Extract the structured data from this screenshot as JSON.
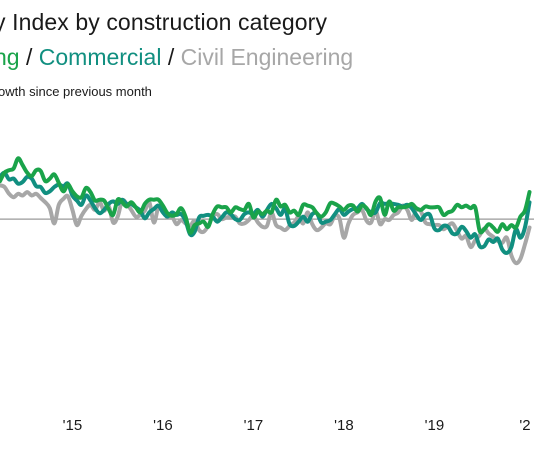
{
  "chart_data": {
    "type": "line",
    "title": "y Index by construction category",
    "subtitle": "owth since previous month",
    "legend_text": [
      {
        "text": "ng",
        "series": 0
      },
      {
        "text": " / ",
        "series": null
      },
      {
        "text": "Commercial",
        "series": 1
      },
      {
        "text": " / ",
        "series": null
      },
      {
        "text": "Civil Engineering",
        "series": 2
      }
    ],
    "x_tick_labels": [
      "'15",
      "'16",
      "'17",
      "'18",
      "'19",
      "'2"
    ],
    "x_tick_positions": [
      2015,
      2016,
      2017,
      2018,
      2019,
      2020
    ],
    "x_range": [
      2014.2,
      2020.1
    ],
    "y_range": [
      -2.2,
      1.15
    ],
    "baseline": 0,
    "series": [
      {
        "color": "#1aa34a",
        "x": [
          2014.2,
          2014.25,
          2014.3,
          2014.35,
          2014.4,
          2014.45,
          2014.5,
          2014.55,
          2014.6,
          2014.65,
          2014.7,
          2014.75,
          2014.8,
          2014.85,
          2014.9,
          2014.95,
          2015.0,
          2015.05,
          2015.1,
          2015.15,
          2015.2,
          2015.25,
          2015.3,
          2015.35,
          2015.4,
          2015.45,
          2015.5,
          2015.55,
          2015.6,
          2015.65,
          2015.7,
          2015.75,
          2015.8,
          2015.85,
          2015.9,
          2015.95,
          2016.0,
          2016.05,
          2016.1,
          2016.15,
          2016.2,
          2016.25,
          2016.3,
          2016.35,
          2016.4,
          2016.45,
          2016.5,
          2016.55,
          2016.6,
          2016.65,
          2016.7,
          2016.75,
          2016.8,
          2016.85,
          2016.9,
          2016.95,
          2017.0,
          2017.05,
          2017.1,
          2017.15,
          2017.2,
          2017.25,
          2017.3,
          2017.35,
          2017.4,
          2017.45,
          2017.5,
          2017.55,
          2017.6,
          2017.65,
          2017.7,
          2017.75,
          2017.8,
          2017.85,
          2017.9,
          2017.95,
          2018.0,
          2018.05,
          2018.1,
          2018.15,
          2018.2,
          2018.25,
          2018.3,
          2018.35,
          2018.4,
          2018.45,
          2018.5,
          2018.55,
          2018.6,
          2018.65,
          2018.7,
          2018.75,
          2018.8,
          2018.85,
          2018.9,
          2018.95,
          2019.0,
          2019.05,
          2019.1,
          2019.15,
          2019.2,
          2019.25,
          2019.3,
          2019.35,
          2019.4,
          2019.45,
          2019.5,
          2019.55,
          2019.6,
          2019.65,
          2019.7,
          2019.75,
          2019.8,
          2019.85,
          2019.9,
          2019.95,
          2020.0,
          2020.05
        ],
        "y": [
          0.45,
          0.55,
          0.58,
          0.6,
          0.72,
          0.64,
          0.55,
          0.51,
          0.58,
          0.57,
          0.45,
          0.48,
          0.53,
          0.43,
          0.33,
          0.41,
          0.33,
          0.27,
          0.26,
          0.37,
          0.32,
          0.22,
          0.23,
          0.22,
          0.12,
          0.05,
          0.23,
          0.2,
          0.15,
          0.2,
          0.14,
          0.08,
          0.18,
          0.23,
          0.23,
          0.23,
          0.16,
          0.07,
          0.04,
          0.06,
          0.13,
          0.03,
          -0.16,
          -0.07,
          -0.05,
          -0.03,
          -0.09,
          0.06,
          0.15,
          0.14,
          0.14,
          0.08,
          0.14,
          0.12,
          0.11,
          0.18,
          0.02,
          0.09,
          0.06,
          0.1,
          0.08,
          0.23,
          0.15,
          0.17,
          0.08,
          0.1,
          0.05,
          0.17,
          0.16,
          0.14,
          0.07,
          0.03,
          0.08,
          0.19,
          0.18,
          0.15,
          0.11,
          0.16,
          0.16,
          0.09,
          0.16,
          0.13,
          0.05,
          0.21,
          0.25,
          0.05,
          0.21,
          0.1,
          0.14,
          0.14,
          0.15,
          0.18,
          0.13,
          0.11,
          0.15,
          0.14,
          0.14,
          0.14,
          0.05,
          0.08,
          0.1,
          0.17,
          0.14,
          0.16,
          0.13,
          0.14,
          -0.14,
          -0.12,
          -0.06,
          -0.1,
          -0.15,
          -0.06,
          -0.12,
          -0.07,
          -0.1,
          0.03,
          0.1,
          0.32
        ]
      },
      {
        "color": "#118f80",
        "x": [
          2014.2,
          2014.25,
          2014.3,
          2014.35,
          2014.4,
          2014.45,
          2014.5,
          2014.55,
          2014.6,
          2014.65,
          2014.7,
          2014.75,
          2014.8,
          2014.85,
          2014.9,
          2014.95,
          2015.0,
          2015.05,
          2015.1,
          2015.15,
          2015.2,
          2015.25,
          2015.3,
          2015.35,
          2015.4,
          2015.45,
          2015.5,
          2015.55,
          2015.6,
          2015.65,
          2015.7,
          2015.75,
          2015.8,
          2015.85,
          2015.9,
          2015.95,
          2016.0,
          2016.05,
          2016.1,
          2016.15,
          2016.2,
          2016.25,
          2016.3,
          2016.35,
          2016.4,
          2016.45,
          2016.5,
          2016.55,
          2016.6,
          2016.65,
          2016.7,
          2016.75,
          2016.8,
          2016.85,
          2016.9,
          2016.95,
          2017.0,
          2017.05,
          2017.1,
          2017.15,
          2017.2,
          2017.25,
          2017.3,
          2017.35,
          2017.4,
          2017.45,
          2017.5,
          2017.55,
          2017.6,
          2017.65,
          2017.7,
          2017.75,
          2017.8,
          2017.85,
          2017.9,
          2017.95,
          2018.0,
          2018.05,
          2018.1,
          2018.15,
          2018.2,
          2018.25,
          2018.3,
          2018.35,
          2018.4,
          2018.45,
          2018.5,
          2018.55,
          2018.6,
          2018.65,
          2018.7,
          2018.75,
          2018.8,
          2018.85,
          2018.9,
          2018.95,
          2019.0,
          2019.05,
          2019.1,
          2019.15,
          2019.2,
          2019.25,
          2019.3,
          2019.35,
          2019.4,
          2019.45,
          2019.5,
          2019.55,
          2019.6,
          2019.65,
          2019.7,
          2019.75,
          2019.8,
          2019.85,
          2019.9,
          2019.95,
          2020.0,
          2020.05
        ],
        "y": [
          0.5,
          0.55,
          0.47,
          0.48,
          0.42,
          0.44,
          0.5,
          0.48,
          0.39,
          0.38,
          0.31,
          0.33,
          0.38,
          0.41,
          0.39,
          0.42,
          0.28,
          0.22,
          0.17,
          0.28,
          0.22,
          0.13,
          0.07,
          0.11,
          0.18,
          0.21,
          0.18,
          0.23,
          0.18,
          0.18,
          0.14,
          0.1,
          0.01,
          0.08,
          0.12,
          0.16,
          0.08,
          0.03,
          0.08,
          0.05,
          0.06,
          -0.02,
          -0.18,
          -0.15,
          0.02,
          0.04,
          0.05,
          0.03,
          -0.03,
          0.02,
          0.08,
          0.06,
          0.0,
          -0.01,
          0.06,
          0.08,
          0.06,
          0.11,
          0.03,
          0.11,
          0.18,
          0.13,
          0.05,
          0.12,
          -0.06,
          -0.08,
          -0.03,
          0.03,
          -0.03,
          0.06,
          0.07,
          -0.04,
          -0.03,
          -0.01,
          0.06,
          0.12,
          0.05,
          0.09,
          0.12,
          0.13,
          0.18,
          0.12,
          0.08,
          0.08,
          0.19,
          0.18,
          0.19,
          0.18,
          0.17,
          0.15,
          0.17,
          0.13,
          0.05,
          -0.01,
          0.05,
          0.05,
          -0.11,
          -0.13,
          -0.08,
          -0.09,
          -0.17,
          -0.17,
          -0.09,
          -0.14,
          -0.22,
          -0.18,
          -0.32,
          -0.32,
          -0.24,
          -0.27,
          -0.23,
          -0.36,
          -0.4,
          -0.33,
          -0.12,
          -0.22,
          -0.1,
          0.2
        ]
      },
      {
        "color": "#a7a7a7",
        "x": [
          2014.2,
          2014.25,
          2014.3,
          2014.35,
          2014.4,
          2014.45,
          2014.5,
          2014.55,
          2014.6,
          2014.65,
          2014.7,
          2014.75,
          2014.8,
          2014.85,
          2014.9,
          2014.95,
          2015.0,
          2015.05,
          2015.1,
          2015.15,
          2015.2,
          2015.25,
          2015.3,
          2015.35,
          2015.4,
          2015.45,
          2015.5,
          2015.55,
          2015.6,
          2015.65,
          2015.7,
          2015.75,
          2015.8,
          2015.85,
          2015.9,
          2015.95,
          2016.0,
          2016.05,
          2016.1,
          2016.15,
          2016.2,
          2016.25,
          2016.3,
          2016.35,
          2016.4,
          2016.45,
          2016.5,
          2016.55,
          2016.6,
          2016.65,
          2016.7,
          2016.75,
          2016.8,
          2016.85,
          2016.9,
          2016.95,
          2017.0,
          2017.05,
          2017.1,
          2017.15,
          2017.2,
          2017.25,
          2017.3,
          2017.35,
          2017.4,
          2017.45,
          2017.5,
          2017.55,
          2017.6,
          2017.65,
          2017.7,
          2017.75,
          2017.8,
          2017.85,
          2017.9,
          2017.95,
          2018.0,
          2018.05,
          2018.1,
          2018.15,
          2018.2,
          2018.25,
          2018.3,
          2018.35,
          2018.4,
          2018.45,
          2018.5,
          2018.55,
          2018.6,
          2018.65,
          2018.7,
          2018.75,
          2018.8,
          2018.85,
          2018.9,
          2018.95,
          2019.0,
          2019.05,
          2019.1,
          2019.15,
          2019.2,
          2019.25,
          2019.3,
          2019.35,
          2019.4,
          2019.45,
          2019.5,
          2019.55,
          2019.6,
          2019.65,
          2019.7,
          2019.75,
          2019.8,
          2019.85,
          2019.9,
          2019.95,
          2020.0,
          2020.05
        ],
        "y": [
          0.4,
          0.38,
          0.3,
          0.26,
          0.3,
          0.28,
          0.32,
          0.28,
          0.3,
          0.25,
          0.2,
          0.13,
          -0.05,
          0.17,
          0.24,
          0.27,
          0.11,
          -0.07,
          0.04,
          0.12,
          0.17,
          0.11,
          0.2,
          0.1,
          0.16,
          -0.04,
          0.03,
          0.22,
          0.18,
          0.11,
          0.03,
          0.05,
          0.1,
          0.2,
          -0.04,
          0.14,
          0.1,
          0.02,
          0.03,
          -0.06,
          -0.01,
          -0.05,
          -0.08,
          -0.02,
          -0.13,
          -0.15,
          -0.08,
          0.03,
          0.06,
          0.0,
          0.02,
          0.03,
          0.03,
          -0.05,
          -0.05,
          -0.01,
          0.04,
          -0.04,
          -0.09,
          -0.08,
          0.08,
          -0.07,
          -0.1,
          -0.13,
          -0.08,
          -0.04,
          0.03,
          -0.05,
          0.08,
          -0.06,
          -0.13,
          -0.1,
          -0.05,
          -0.06,
          0.04,
          0.01,
          -0.22,
          -0.05,
          0.05,
          0.08,
          0.11,
          -0.02,
          -0.04,
          0.1,
          -0.06,
          0.0,
          -0.01,
          0.05,
          0.08,
          0.16,
          0.11,
          -0.01,
          0.11,
          0.09,
          -0.04,
          -0.06,
          -0.07,
          -0.07,
          -0.12,
          -0.08,
          -0.05,
          -0.14,
          -0.23,
          -0.2,
          -0.33,
          -0.25,
          -0.19,
          -0.11,
          -0.17,
          -0.21,
          -0.26,
          -0.28,
          -0.22,
          -0.43,
          -0.52,
          -0.47,
          -0.3,
          -0.1
        ]
      }
    ]
  }
}
